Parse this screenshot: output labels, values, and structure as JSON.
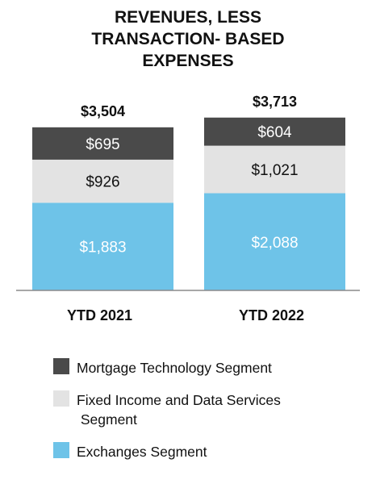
{
  "chart_data": {
    "type": "bar",
    "stacked": true,
    "title_lines": [
      "REVENUES, LESS",
      "TRANSACTION- BASED",
      "EXPENSES"
    ],
    "categories": [
      "YTD 2021",
      "YTD 2022"
    ],
    "totals": [
      3504,
      3713
    ],
    "total_labels": [
      "$3,504",
      "$3,713"
    ],
    "series": [
      {
        "name": "Exchanges Segment",
        "values": [
          1883,
          2088
        ],
        "labels": [
          "$1,883",
          "$2,088"
        ],
        "color": "#6ec3e8",
        "label_color": "#ffffff"
      },
      {
        "name": "Fixed Income and Data Services Segment",
        "legend_lines": [
          "Fixed Income and Data Services",
          " Segment"
        ],
        "values": [
          926,
          1021
        ],
        "labels": [
          "$926",
          "$1,021"
        ],
        "color": "#e3e3e3",
        "label_color": "#111111"
      },
      {
        "name": "Mortgage Technology Segment",
        "values": [
          695,
          604
        ],
        "labels": [
          "$695",
          "$604"
        ],
        "color": "#4a4a4a",
        "label_color": "#ffffff"
      }
    ],
    "legend_order": [
      "Mortgage Technology Segment",
      "Fixed Income and Data Services Segment",
      "Exchanges Segment"
    ],
    "legend_placement": "bottom",
    "axis_color": "#8a8a8a",
    "grid": false
  }
}
